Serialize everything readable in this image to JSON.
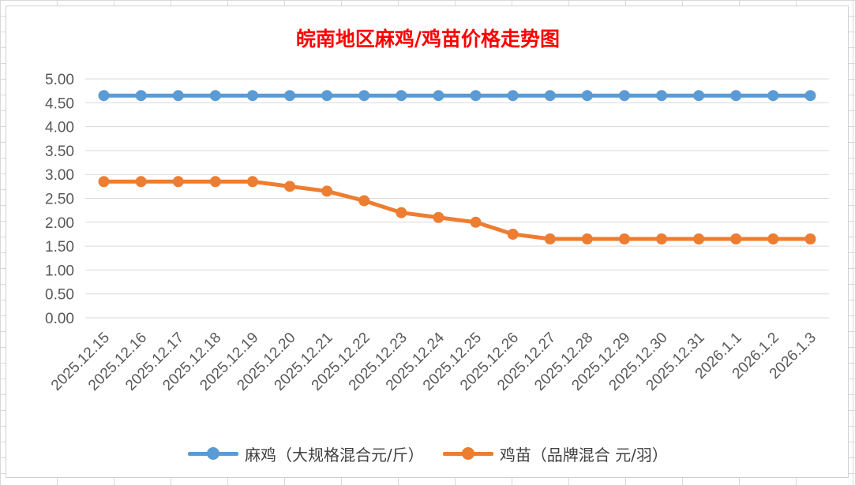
{
  "chart_data": {
    "type": "line",
    "title": "皖南地区麻鸡/鸡苗价格走势图",
    "xlabel": "",
    "ylabel": "",
    "ylim": [
      0,
      5
    ],
    "y_ticks": [
      "0.00",
      "0.50",
      "1.00",
      "1.50",
      "2.00",
      "2.50",
      "3.00",
      "3.50",
      "4.00",
      "4.50",
      "5.00"
    ],
    "categories": [
      "2025.12.15",
      "2025.12.16",
      "2025.12.17",
      "2025.12.18",
      "2025.12.19",
      "2025.12.20",
      "2025.12.21",
      "2025.12.22",
      "2025.12.23",
      "2025.12.24",
      "2025.12.25",
      "2025.12.26",
      "2025.12.27",
      "2025.12.28",
      "2025.12.29",
      "2025.12.30",
      "2025.12.31",
      "2026.1.1",
      "2026.1.2",
      "2026.1.3"
    ],
    "series": [
      {
        "name": "麻鸡（大规格混合元/斤）",
        "color": "#5b9bd5",
        "values": [
          4.65,
          4.65,
          4.65,
          4.65,
          4.65,
          4.65,
          4.65,
          4.65,
          4.65,
          4.65,
          4.65,
          4.65,
          4.65,
          4.65,
          4.65,
          4.65,
          4.65,
          4.65,
          4.65,
          4.65
        ]
      },
      {
        "name": "鸡苗（品牌混合 元/羽）",
        "color": "#ed7d31",
        "values": [
          2.85,
          2.85,
          2.85,
          2.85,
          2.85,
          2.75,
          2.65,
          2.45,
          2.2,
          2.1,
          2.0,
          1.75,
          1.65,
          1.65,
          1.65,
          1.65,
          1.65,
          1.65,
          1.65,
          1.65
        ]
      }
    ],
    "grid": true,
    "legend_position": "bottom"
  }
}
